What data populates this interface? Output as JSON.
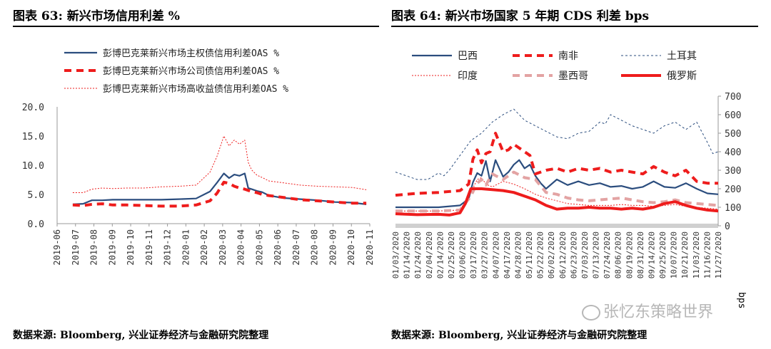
{
  "left": {
    "title": "图表 63:  新兴市场信用利差  %",
    "source": "数据来源: Bloomberg, 兴业证券经济与金融研究院整理"
  },
  "right": {
    "title": "图表 64:  新兴市场国家 5 年期 CDS 利差  bps",
    "source": "数据来源: Bloomberg, 兴业证券经济与金融研究院整理",
    "unit_label": "bps"
  },
  "watermark": "张忆东策略世界",
  "colors": {
    "navy": "#2b4d7e",
    "red": "#ee1c1c",
    "pink": "#e3a3a3"
  },
  "chart_data": [
    {
      "type": "line",
      "yticks": [
        "20.0",
        "15.0",
        "10.0",
        "5.0",
        "0.0"
      ],
      "ylim": [
        0,
        20
      ],
      "x_ticks": [
        "2019-06",
        "2019-07",
        "2019-08",
        "2019-09",
        "2019-10",
        "2019-11",
        "2019-12",
        "2020-01",
        "2020-02",
        "2020-03",
        "2020-04",
        "2020-05",
        "2020-06",
        "2020-07",
        "2020-08",
        "2020-09",
        "2020-10",
        "2020-11"
      ],
      "x_index_range": [
        0,
        18
      ],
      "legend_position": "top",
      "series": [
        {
          "name": "彭博巴克莱新兴市场主权债信用利差OAS %",
          "color": "#2b4d7e",
          "style": "solid",
          "x": [
            0.9,
            1.5,
            2,
            2.6,
            3.2,
            4,
            5,
            6,
            7,
            8,
            8.8,
            9.2,
            9.6,
            9.9,
            10.2,
            10.5,
            10.8,
            11,
            11.2,
            11.5,
            11.8,
            12.2,
            13,
            14,
            15,
            16,
            17,
            17.8
          ],
          "y": [
            3.3,
            3.4,
            4.0,
            4.0,
            4.1,
            4.1,
            4.1,
            4.1,
            4.2,
            4.3,
            5.5,
            7.0,
            8.6,
            7.8,
            8.4,
            8.2,
            8.6,
            6.1,
            5.9,
            5.6,
            5.4,
            4.8,
            4.4,
            4.2,
            4.0,
            3.7,
            3.6,
            3.3
          ]
        },
        {
          "name": "彭博巴克莱新兴市场公司债信用利差OAS %",
          "color": "#ee1c1c",
          "style": "dash",
          "x": [
            0.9,
            1.5,
            2,
            2.6,
            3.2,
            4,
            5,
            6,
            7,
            8,
            8.8,
            9.2,
            9.6,
            9.9,
            10.2,
            10.5,
            10.8,
            11,
            11.2,
            11.5,
            11.8,
            12.2,
            13,
            14,
            15,
            16,
            17,
            17.8
          ],
          "y": [
            3.2,
            3.1,
            3.3,
            3.4,
            3.2,
            3.2,
            3.1,
            3.0,
            3.0,
            3.2,
            3.9,
            5.2,
            7.1,
            6.9,
            6.4,
            6.1,
            5.9,
            5.7,
            5.5,
            5.3,
            5.0,
            4.8,
            4.5,
            4.1,
            3.9,
            3.7,
            3.5,
            3.5
          ]
        },
        {
          "name": "彭博巴克莱新兴市场高收益债信用利差OAS %",
          "color": "#ee1c1c",
          "style": "dot",
          "x": [
            0.9,
            1.5,
            2,
            2.6,
            3.2,
            4,
            5,
            6,
            7,
            8,
            8.8,
            9.2,
            9.6,
            9.9,
            10.2,
            10.5,
            10.8,
            11,
            11.2,
            11.5,
            11.8,
            12.2,
            13,
            14,
            15,
            16,
            17,
            17.8
          ],
          "y": [
            5.3,
            5.3,
            5.9,
            6.1,
            6.0,
            6.1,
            6.1,
            6.3,
            6.4,
            6.6,
            8.8,
            11.5,
            15.0,
            13.3,
            14.3,
            13.6,
            14.3,
            10.5,
            9.2,
            8.3,
            7.9,
            7.3,
            7.0,
            6.6,
            6.4,
            6.3,
            6.2,
            5.8
          ]
        }
      ]
    },
    {
      "type": "line",
      "yticks": [
        "700",
        "600",
        "500",
        "400",
        "300",
        "200",
        "100",
        "0"
      ],
      "ylim": [
        0,
        700
      ],
      "x_ticks": [
        "01/03/2020",
        "01/14/2020",
        "01/24/2020",
        "02/04/2020",
        "02/14/2020",
        "02/25/2020",
        "03/06/2020",
        "03/17/2020",
        "03/27/2020",
        "04/07/2020",
        "04/17/2020",
        "04/28/2020",
        "05/11/2020",
        "05/22/2020",
        "06/02/2020",
        "06/12/2020",
        "06/23/2020",
        "07/03/2020",
        "07/13/2020",
        "07/24/2020",
        "08/06/2020",
        "08/19/2020",
        "08/31/2020",
        "09/14/2020",
        "09/25/2020",
        "10/07/2020",
        "10/21/2020",
        "11/03/2020",
        "11/16/2020",
        "11/27/2020"
      ],
      "x_index_range": [
        0,
        30
      ],
      "legend_position": "top",
      "series": [
        {
          "name": "巴西",
          "color": "#2b4d7e",
          "style": "solid",
          "x": [
            0,
            2,
            4,
            6,
            6.8,
            7.2,
            7.6,
            8,
            8.4,
            8.8,
            9.3,
            10,
            10.5,
            11,
            11.5,
            12,
            12.5,
            13,
            13.5,
            14,
            15,
            16,
            17,
            18,
            19,
            20,
            21,
            22,
            23,
            24,
            25,
            26,
            27,
            28,
            29,
            30
          ],
          "y": [
            100,
            100,
            100,
            110,
            145,
            235,
            285,
            270,
            350,
            240,
            355,
            265,
            290,
            330,
            355,
            310,
            330,
            270,
            230,
            200,
            250,
            220,
            240,
            220,
            230,
            210,
            215,
            200,
            210,
            240,
            210,
            205,
            230,
            200,
            175,
            170
          ]
        },
        {
          "name": "南非",
          "color": "#ee1c1c",
          "style": "dash",
          "x": [
            0,
            2,
            4,
            6,
            6.8,
            7.2,
            7.6,
            8,
            8.4,
            8.8,
            9.3,
            10,
            10.5,
            11,
            11.5,
            12,
            12.5,
            13,
            13.5,
            14,
            15,
            16,
            17,
            18,
            19,
            20,
            21,
            22,
            23,
            24,
            25,
            26,
            27,
            28,
            29,
            30
          ],
          "y": [
            165,
            175,
            180,
            190,
            225,
            360,
            410,
            340,
            390,
            400,
            500,
            400,
            410,
            440,
            420,
            400,
            380,
            280,
            290,
            300,
            310,
            290,
            310,
            300,
            310,
            290,
            300,
            290,
            280,
            320,
            290,
            270,
            300,
            240,
            230,
            230
          ]
        },
        {
          "name": "土耳其",
          "color": "#2b4d7e",
          "style": "thin-dash",
          "x": [
            0,
            1,
            2,
            3,
            4,
            4.5,
            5,
            6,
            7,
            8,
            9,
            10,
            11,
            12,
            13,
            14,
            15,
            16,
            17,
            18,
            19,
            19.5,
            20,
            21,
            22,
            23,
            24,
            25,
            26,
            27,
            28,
            29,
            29.5,
            30
          ],
          "y": [
            290,
            270,
            250,
            250,
            285,
            270,
            300,
            380,
            460,
            500,
            560,
            600,
            630,
            570,
            540,
            510,
            480,
            470,
            500,
            510,
            560,
            550,
            600,
            570,
            540,
            520,
            500,
            540,
            560,
            520,
            560,
            450,
            390,
            400
          ]
        },
        {
          "name": "印度",
          "color": "#ee1c1c",
          "style": "dot",
          "x": [
            0,
            2,
            4,
            6,
            7,
            7.6,
            8,
            8.4,
            9,
            10,
            11,
            12,
            13,
            14,
            15,
            16,
            17,
            18,
            19,
            20,
            21,
            22,
            23,
            24,
            25,
            26,
            27,
            28,
            29,
            30
          ],
          "y": [
            80,
            80,
            80,
            85,
            180,
            250,
            260,
            225,
            210,
            240,
            225,
            200,
            170,
            150,
            135,
            120,
            115,
            110,
            110,
            110,
            115,
            110,
            110,
            105,
            110,
            115,
            105,
            100,
            95,
            90
          ]
        },
        {
          "name": "墨西哥",
          "color": "#e3a3a3",
          "style": "dash",
          "x": [
            0,
            2,
            4,
            6,
            7,
            7.6,
            8,
            8.4,
            9,
            10,
            11,
            12,
            13,
            14,
            15,
            16,
            17,
            18,
            19,
            20,
            21,
            22,
            23,
            24,
            25,
            26,
            27,
            28,
            29,
            30
          ],
          "y": [
            80,
            80,
            80,
            85,
            160,
            230,
            250,
            220,
            280,
            250,
            290,
            260,
            250,
            180,
            170,
            150,
            140,
            135,
            140,
            145,
            150,
            140,
            130,
            125,
            130,
            140,
            125,
            120,
            115,
            110
          ]
        },
        {
          "name": "俄罗斯",
          "color": "#ee1c1c",
          "style": "solid-thick",
          "x": [
            0,
            2,
            4,
            5,
            6,
            6.5,
            7,
            8,
            9,
            10,
            11,
            12,
            13,
            14,
            15,
            16,
            17,
            18,
            19,
            20,
            21,
            22,
            23,
            24,
            25,
            26,
            27,
            28,
            29,
            30
          ],
          "y": [
            65,
            60,
            62,
            58,
            70,
            120,
            200,
            200,
            195,
            190,
            180,
            160,
            140,
            110,
            90,
            95,
            95,
            100,
            95,
            95,
            90,
            95,
            90,
            100,
            120,
            130,
            110,
            95,
            85,
            80
          ]
        }
      ]
    }
  ]
}
